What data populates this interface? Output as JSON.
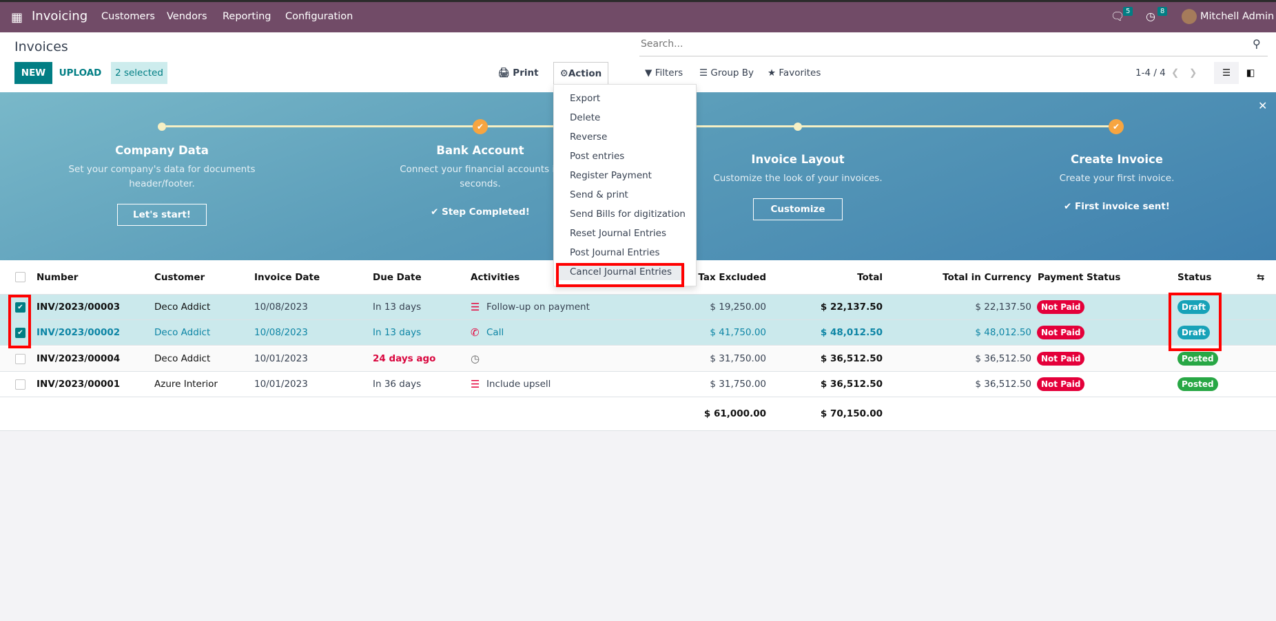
{
  "navbar": {
    "app": "Invoicing",
    "menus": [
      "Customers",
      "Vendors",
      "Reporting",
      "Configuration"
    ],
    "messages_count": "5",
    "activities_count": "8",
    "user": "Mitchell Admin"
  },
  "control": {
    "title": "Invoices",
    "new": "NEW",
    "upload": "UPLOAD",
    "selected": "2 selected",
    "print": "Print",
    "action": "Action",
    "search_placeholder": "Search...",
    "filters": "Filters",
    "group_by": "Group By",
    "favorites": "Favorites",
    "pager": "1-4 / 4"
  },
  "action_menu": [
    "Export",
    "Delete",
    "Reverse",
    "Post entries",
    "Register Payment",
    "Send & print",
    "Send Bills for digitization",
    "Reset Journal Entries",
    "Post Journal Entries",
    "Cancel Journal Entries"
  ],
  "banner": {
    "steps": [
      {
        "title": "Company Data",
        "desc": "Set your company's data for documents header/footer.",
        "button": "Let's start!",
        "done": false
      },
      {
        "title": "Bank Account",
        "desc": "Connect your financial accounts in seconds.",
        "status": "Step Completed!",
        "done": true
      },
      {
        "title": "Invoice Layout",
        "desc": "Customize the look of your invoices.",
        "button": "Customize",
        "done": false
      },
      {
        "title": "Create Invoice",
        "desc": "Create your first invoice.",
        "status": "First invoice sent!",
        "done": true
      }
    ]
  },
  "table": {
    "headers": [
      "Number",
      "Customer",
      "Invoice Date",
      "Due Date",
      "Activities",
      "Tax Excluded",
      "Total",
      "Total in Currency",
      "Payment Status",
      "Status"
    ],
    "rows": [
      {
        "number": "INV/2023/00003",
        "customer": "Deco Addict",
        "invoice_date": "10/08/2023",
        "due": "In 13 days",
        "activity": "Follow-up on payment",
        "activity_icon": "email-icon",
        "tax_excl": "$ 19,250.00",
        "total": "$ 22,137.50",
        "total_cur": "$ 22,137.50",
        "payment": "Not Paid",
        "status": "Draft",
        "selected": true
      },
      {
        "number": "INV/2023/00002",
        "customer": "Deco Addict",
        "invoice_date": "10/08/2023",
        "due": "In 13 days",
        "activity": "Call",
        "activity_icon": "phone-icon",
        "tax_excl": "$ 41,750.00",
        "total": "$ 48,012.50",
        "total_cur": "$ 48,012.50",
        "payment": "Not Paid",
        "status": "Draft",
        "selected": true
      },
      {
        "number": "INV/2023/00004",
        "customer": "Deco Addict",
        "invoice_date": "10/01/2023",
        "due": "24 days ago",
        "activity": "",
        "activity_icon": "clock-icon",
        "tax_excl": "$ 31,750.00",
        "total": "$ 36,512.50",
        "total_cur": "$ 36,512.50",
        "payment": "Not Paid",
        "status": "Posted",
        "selected": false
      },
      {
        "number": "INV/2023/00001",
        "customer": "Azure Interior",
        "invoice_date": "10/01/2023",
        "due": "In 36 days",
        "activity": "Include upsell",
        "activity_icon": "email-icon",
        "tax_excl": "$ 31,750.00",
        "total": "$ 36,512.50",
        "total_cur": "$ 36,512.50",
        "payment": "Not Paid",
        "status": "Posted",
        "selected": false
      }
    ],
    "totals": {
      "tax_excl": "$ 61,000.00",
      "total": "$ 70,150.00"
    }
  },
  "colors": {
    "brand": "#714b67",
    "primary": "#017e84",
    "selected_row": "#cbe9ec",
    "not_paid": "#e4003a",
    "draft": "#17a2b8",
    "posted": "#28a745"
  }
}
